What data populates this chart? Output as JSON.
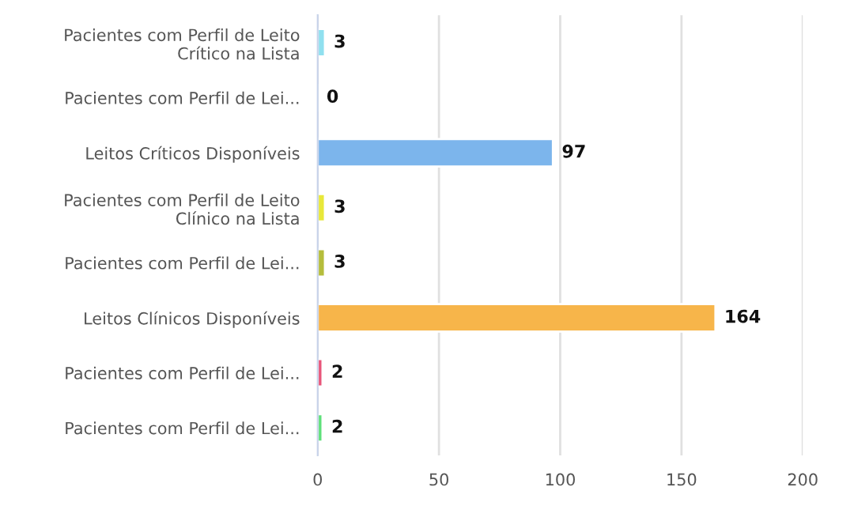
{
  "chart_data": {
    "type": "bar",
    "orientation": "horizontal",
    "categories": [
      "Pacientes com Perfil de Leito\nCrítico na Lista",
      "Pacientes com Perfil de Lei...",
      "Leitos Críticos Disponíveis",
      "Pacientes com Perfil de Leito\nClínico na Lista",
      "Pacientes com Perfil de Lei...",
      "Leitos Clínicos Disponíveis",
      "Pacientes com Perfil de Lei...",
      "Pacientes com Perfil de Lei..."
    ],
    "values": [
      3,
      0,
      97,
      3,
      3,
      164,
      2,
      2
    ],
    "colors": [
      "#90e0ef",
      null,
      "#7cb5ec",
      "#e8e83a",
      "#b5bd3c",
      "#f7b54a",
      "#e8557a",
      "#5ee07a"
    ],
    "xlim": [
      0,
      200
    ],
    "xticks": [
      0,
      50,
      100,
      150,
      200
    ],
    "grid": "x",
    "data_labels": true,
    "legend": false
  }
}
